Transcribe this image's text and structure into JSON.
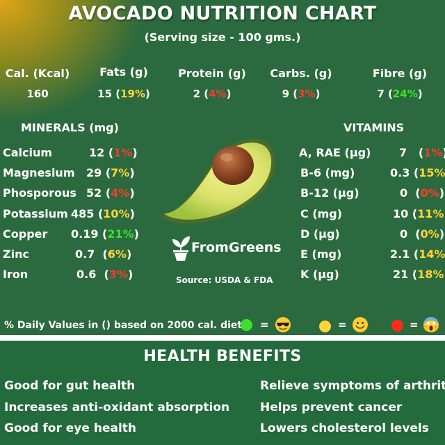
{
  "title": "AVOCADO NUTRITION CHART",
  "subtitle": "(Serving size - 100 gms.)",
  "macros": [
    {
      "label": "Cal. (Kcal)",
      "value": "160",
      "pct": "",
      "color": ""
    },
    {
      "label": "Fats (g)",
      "value": "15",
      "pct": "19%",
      "color": "#ffd53b"
    },
    {
      "label": "Protein (g)",
      "value": "2",
      "pct": "4%",
      "color": "#ff3a2e"
    },
    {
      "label": "Carbs. (g)",
      "value": "9",
      "pct": "3%",
      "color": "#ff3a2e"
    },
    {
      "label": "Fibre (g)",
      "value": "7",
      "pct": "24%",
      "color": "#3fe02c"
    }
  ],
  "minerals": {
    "heading": "MINERALS (mg)",
    "items": [
      {
        "name": "Calcium",
        "value": "12",
        "pct": "1%",
        "color": "#ff3a2e"
      },
      {
        "name": "Magnesium",
        "value": "29",
        "pct": "7%",
        "color": "#ffd53b"
      },
      {
        "name": "Phosporous",
        "value": "52",
        "pct": "4%",
        "color": "#ff3a2e"
      },
      {
        "name": "Potassium",
        "value": "485",
        "pct": "10%",
        "color": "#ffd53b"
      },
      {
        "name": "Copper",
        "value": "0.19",
        "pct": "21%",
        "color": "#3fe02c"
      },
      {
        "name": "Zinc",
        "value": "0.7",
        "pct": "6%",
        "color": "#ffd53b"
      },
      {
        "name": "Iron",
        "value": "0.6",
        "pct": "3%",
        "color": "#ff3a2e"
      }
    ]
  },
  "vitamins": {
    "heading": "VITAMINS",
    "items": [
      {
        "name": "A, RAE (µg)",
        "value": "7",
        "pct": "1%",
        "color": "#ff3a2e"
      },
      {
        "name": "B-6 (mg)",
        "value": "0.3",
        "pct": "15%",
        "color": "#ffd53b"
      },
      {
        "name": "B-12 (µg)",
        "value": "0",
        "pct": "0%",
        "color": "#ff3a2e"
      },
      {
        "name": "C (mg)",
        "value": "10",
        "pct": "11%",
        "color": "#ffd53b"
      },
      {
        "name": "D (µg)",
        "value": "0",
        "pct": "0%",
        "color": "#ffd53b"
      },
      {
        "name": "E (mg)",
        "value": "2.1",
        "pct": "14%",
        "color": "#ffd53b"
      },
      {
        "name": "K (µg)",
        "value": "21",
        "pct": "18%",
        "color": "#ffd53b"
      }
    ]
  },
  "brand": "FromGreens",
  "source": "Source: USDA & FDA",
  "daily_note": "% Daily Values in () based on 2000  cal. diet",
  "legend": [
    {
      "dot_color": "#3fe02c",
      "eq": "=",
      "emoji": "cool-face-icon"
    },
    {
      "dot_color": "#ffd53b",
      "eq": "=",
      "emoji": "smiling-face-icon"
    },
    {
      "dot_color": "#ff2a1e",
      "eq": "=",
      "emoji": "screaming-face-icon"
    }
  ],
  "health_benefits": {
    "title": "HEALTH BENEFITS",
    "left": [
      "Good for gut health",
      "Increases anti-oxidant absorption",
      "Good for eye health"
    ],
    "right": [
      "Relieve symptoms of arthritis",
      "Helps prevent cancer",
      "Lowers cholesterol levels"
    ]
  }
}
